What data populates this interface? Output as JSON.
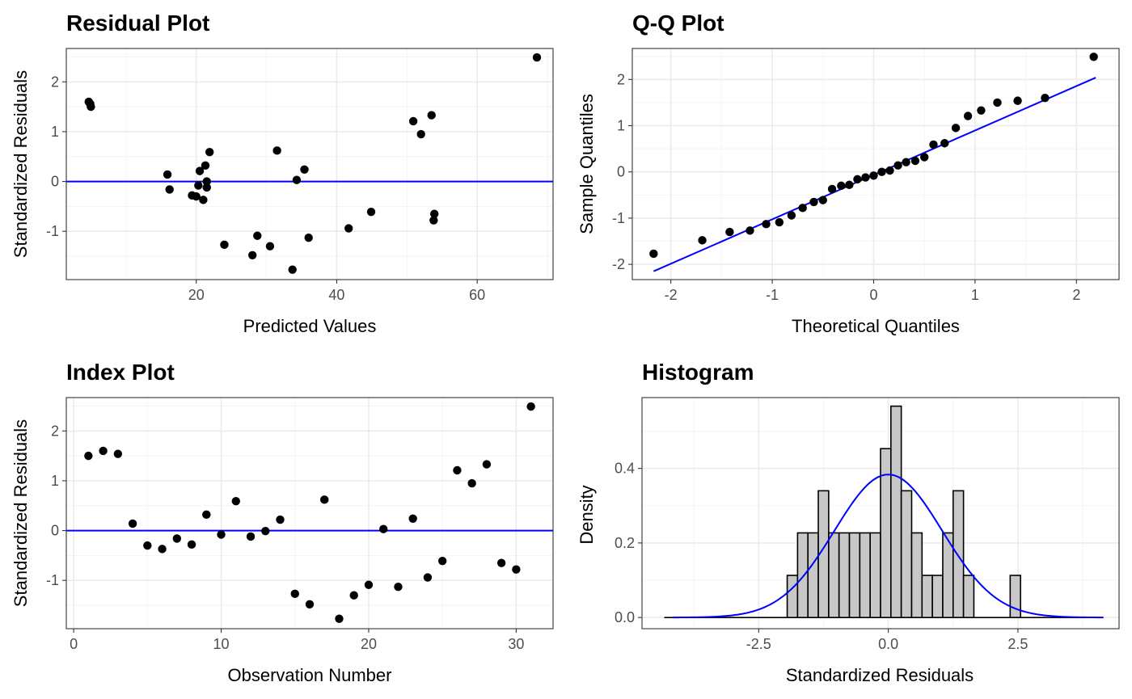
{
  "chart_data": [
    {
      "id": "residual",
      "type": "scatter",
      "title": "Residual Plot",
      "xlabel": "Predicted Values",
      "ylabel": "Standardized Residuals",
      "xlim": [
        1.5,
        70.8
      ],
      "ylim": [
        -1.97,
        2.67
      ],
      "xticks": [
        20,
        40,
        60
      ],
      "yticks": [
        -1,
        0,
        1,
        2
      ],
      "hline": 0,
      "line_color": "#0000ff",
      "point_color": "#000000",
      "grid": true,
      "points": [
        [
          4.7,
          1.6
        ],
        [
          4.9,
          1.56
        ],
        [
          5.0,
          1.5
        ],
        [
          15.9,
          0.14
        ],
        [
          16.2,
          -0.16
        ],
        [
          19.4,
          -0.28
        ],
        [
          20.0,
          -0.3
        ],
        [
          20.3,
          -0.08
        ],
        [
          20.5,
          0.21
        ],
        [
          21.0,
          -0.37
        ],
        [
          21.3,
          0.32
        ],
        [
          21.5,
          0.0
        ],
        [
          21.5,
          -0.12
        ],
        [
          21.9,
          0.59
        ],
        [
          24.0,
          -1.27
        ],
        [
          28.0,
          -1.48
        ],
        [
          28.7,
          -1.09
        ],
        [
          30.5,
          -1.3
        ],
        [
          31.5,
          0.62
        ],
        [
          33.7,
          -1.77
        ],
        [
          34.3,
          0.03
        ],
        [
          35.4,
          0.24
        ],
        [
          36.0,
          -1.13
        ],
        [
          41.7,
          -0.94
        ],
        [
          44.9,
          -0.61
        ],
        [
          50.9,
          1.21
        ],
        [
          52.0,
          0.95
        ],
        [
          53.5,
          1.33
        ],
        [
          53.8,
          -0.78
        ],
        [
          53.9,
          -0.65
        ],
        [
          68.5,
          2.49
        ]
      ]
    },
    {
      "id": "qq",
      "type": "scatter",
      "title": "Q-Q Plot",
      "xlabel": "Theoretical Quantiles",
      "ylabel": "Sample Quantiles",
      "xlim": [
        -2.38,
        2.42
      ],
      "ylim": [
        -2.33,
        2.67
      ],
      "xticks": [
        -2,
        -1,
        0,
        1,
        2
      ],
      "yticks": [
        -2,
        -1,
        0,
        1,
        2
      ],
      "reference_line": [
        [
          -2.17,
          -2.15
        ],
        [
          2.19,
          2.04
        ]
      ],
      "line_color": "#0000ff",
      "point_color": "#000000",
      "grid": true,
      "points": [
        [
          -2.17,
          -1.77
        ],
        [
          -1.69,
          -1.48
        ],
        [
          -1.42,
          -1.3
        ],
        [
          -1.22,
          -1.27
        ],
        [
          -1.06,
          -1.13
        ],
        [
          -0.93,
          -1.09
        ],
        [
          -0.81,
          -0.94
        ],
        [
          -0.7,
          -0.78
        ],
        [
          -0.59,
          -0.65
        ],
        [
          -0.5,
          -0.61
        ],
        [
          -0.41,
          -0.37
        ],
        [
          -0.32,
          -0.3
        ],
        [
          -0.24,
          -0.28
        ],
        [
          -0.16,
          -0.16
        ],
        [
          -0.08,
          -0.12
        ],
        [
          0.0,
          -0.08
        ],
        [
          0.08,
          0.0
        ],
        [
          0.16,
          0.03
        ],
        [
          0.24,
          0.14
        ],
        [
          0.32,
          0.21
        ],
        [
          0.41,
          0.24
        ],
        [
          0.5,
          0.32
        ],
        [
          0.59,
          0.59
        ],
        [
          0.7,
          0.62
        ],
        [
          0.81,
          0.95
        ],
        [
          0.93,
          1.21
        ],
        [
          1.06,
          1.33
        ],
        [
          1.22,
          1.5
        ],
        [
          1.42,
          1.54
        ],
        [
          1.69,
          1.6
        ],
        [
          2.17,
          2.49
        ]
      ]
    },
    {
      "id": "index",
      "type": "scatter",
      "title": "Index Plot",
      "xlabel": "Observation Number",
      "ylabel": "Standardized Residuals",
      "xlim": [
        -0.5,
        32.5
      ],
      "ylim": [
        -1.97,
        2.67
      ],
      "xticks": [
        0,
        10,
        20,
        30
      ],
      "yticks": [
        -1,
        0,
        1,
        2
      ],
      "hline": 0,
      "line_color": "#0000ff",
      "point_color": "#000000",
      "grid": true,
      "points": [
        [
          1,
          1.5
        ],
        [
          2,
          1.6
        ],
        [
          3,
          1.54
        ],
        [
          4,
          0.14
        ],
        [
          5,
          -0.3
        ],
        [
          6,
          -0.37
        ],
        [
          7,
          -0.16
        ],
        [
          8,
          -0.28
        ],
        [
          9,
          0.32
        ],
        [
          10,
          -0.08
        ],
        [
          11,
          0.59
        ],
        [
          12,
          -0.12
        ],
        [
          13,
          -0.01
        ],
        [
          14,
          0.22
        ],
        [
          15,
          -1.27
        ],
        [
          16,
          -1.48
        ],
        [
          17,
          0.62
        ],
        [
          18,
          -1.77
        ],
        [
          19,
          -1.3
        ],
        [
          20,
          -1.09
        ],
        [
          21,
          0.03
        ],
        [
          22,
          -1.13
        ],
        [
          23,
          0.24
        ],
        [
          24,
          -0.94
        ],
        [
          25,
          -0.61
        ],
        [
          26,
          1.21
        ],
        [
          27,
          0.95
        ],
        [
          28,
          1.33
        ],
        [
          29,
          -0.65
        ],
        [
          30,
          -0.78
        ],
        [
          31,
          2.49
        ]
      ]
    },
    {
      "id": "histogram",
      "type": "bar",
      "title": "Histogram",
      "xlabel": "Standardized Residuals",
      "ylabel": "Density",
      "xlim": [
        -4.75,
        4.45
      ],
      "ylim": [
        -0.03,
        0.59
      ],
      "xticks": [
        -2.5,
        0.0,
        2.5
      ],
      "yticks": [
        0.0,
        0.2,
        0.4
      ],
      "ytick_labels": [
        "0.0",
        "0.2",
        "0.4"
      ],
      "xtick_labels": [
        "-2.5",
        "0.0",
        "2.5"
      ],
      "bin_width": 0.2,
      "bar_fill": "#c8c8c8",
      "bar_stroke": "#000000",
      "curve_color": "#0000ff",
      "grid": true,
      "baseline_range": [
        -4.32,
        4.14
      ],
      "curve": {
        "kind": "normal-density",
        "mean": 0,
        "sd": 1.04,
        "range": [
          -4.15,
          4.15
        ]
      },
      "bins": [
        [
          -1.85,
          0.113
        ],
        [
          -1.65,
          0.227
        ],
        [
          -1.45,
          0.227
        ],
        [
          -1.25,
          0.34
        ],
        [
          -1.05,
          0.227
        ],
        [
          -0.85,
          0.227
        ],
        [
          -0.65,
          0.227
        ],
        [
          -0.45,
          0.227
        ],
        [
          -0.25,
          0.227
        ],
        [
          -0.05,
          0.453
        ],
        [
          0.15,
          0.567
        ],
        [
          0.35,
          0.34
        ],
        [
          0.55,
          0.227
        ],
        [
          0.75,
          0.113
        ],
        [
          0.95,
          0.113
        ],
        [
          1.15,
          0.227
        ],
        [
          1.35,
          0.34
        ],
        [
          1.55,
          0.113
        ],
        [
          2.45,
          0.113
        ]
      ]
    }
  ]
}
